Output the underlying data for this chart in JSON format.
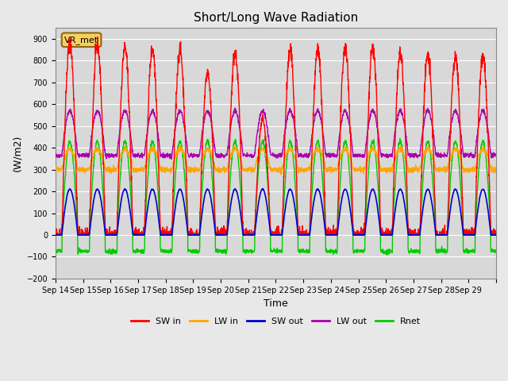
{
  "title": "Short/Long Wave Radiation",
  "xlabel": "Time",
  "ylabel": "(W/m2)",
  "ylim": [
    -200,
    950
  ],
  "yticks": [
    -200,
    -100,
    0,
    100,
    200,
    300,
    400,
    500,
    600,
    700,
    800,
    900
  ],
  "x_labels": [
    "Sep 14",
    "Sep 15",
    "Sep 16",
    "Sep 17",
    "Sep 18",
    "Sep 19",
    "Sep 20",
    "Sep 21",
    "Sep 22",
    "Sep 23",
    "Sep 24",
    "Sep 25",
    "Sep 26",
    "Sep 27",
    "Sep 28",
    "Sep 29"
  ],
  "n_days": 16,
  "station_label": "VR_met",
  "background_color": "#e8e8e8",
  "plot_bg_color": "#d8d8d8",
  "grid_color": "#ffffff",
  "colors": {
    "SW_in": "#ff0000",
    "LW_in": "#ffa500",
    "SW_out": "#0000cc",
    "LW_out": "#aa00aa",
    "Rnet": "#00cc00"
  },
  "legend_labels": [
    "SW in",
    "LW in",
    "SW out",
    "LW out",
    "Rnet"
  ],
  "SW_in_peaks": [
    880,
    870,
    860,
    855,
    850,
    745,
    835,
    530,
    845,
    850,
    855,
    855,
    835,
    825,
    820,
    820
  ],
  "LW_in_base": 300,
  "LW_in_peak": 390,
  "SW_out_peak": 210,
  "LW_out_base": 365,
  "LW_out_peak": 570,
  "Rnet_night": -75,
  "Rnet_peak": 430
}
